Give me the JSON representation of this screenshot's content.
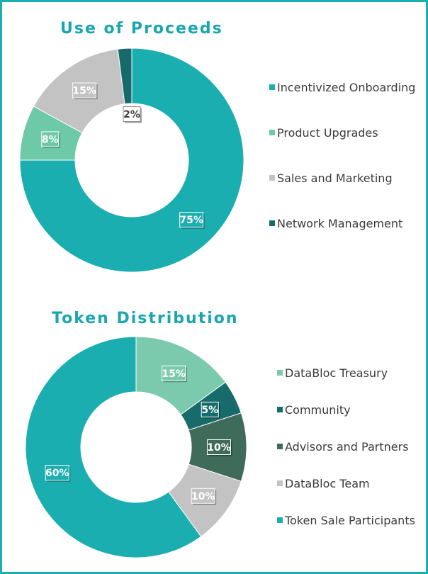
{
  "chart_data": [
    {
      "type": "pie",
      "title": "Use of Proceeds",
      "categories": [
        "Incentivized Onboarding",
        "Product Upgrades",
        "Sales and Marketing",
        "Network Management"
      ],
      "values": [
        75,
        8,
        15,
        2
      ],
      "labels": [
        "75%",
        "8%",
        "15%",
        "2%"
      ],
      "colors": [
        "#1aaeb1",
        "#6ec9a8",
        "#c3c3c3",
        "#166a6c"
      ],
      "legend_position": "right"
    },
    {
      "type": "pie",
      "title": "Token Distribution",
      "categories": [
        "DataBloc Treasury",
        "Community",
        "Advisors and Partners",
        "DataBloc Team",
        "Token Sale Participants"
      ],
      "values": [
        15,
        5,
        10,
        10,
        60
      ],
      "labels": [
        "15%",
        "5%",
        "10%",
        "10%",
        "60%"
      ],
      "colors": [
        "#7ccaad",
        "#176b6b",
        "#3f6b5b",
        "#c3c3c3",
        "#1aaeb1"
      ],
      "legend_position": "right"
    }
  ]
}
